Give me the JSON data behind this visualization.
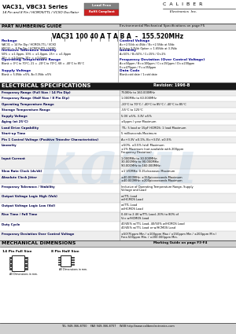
{
  "title_series": "VAC31, VBC31 Series",
  "title_sub": "14 Pin and 8 Pin / HCMOS/TTL / VCXO Oscillator",
  "env_text": "Environmental Mechanical Specifications on page F5",
  "part_guide_title": "PART NUMBERING GUIDE",
  "part_example": "VAC31 100 40 A T A B A  -  155.520MHz",
  "revision_text": "Revision: 1996-B",
  "elec_spec_title": "ELECTRICAL SPECIFICATIONS",
  "mech_title": "MECHANICAL DIMENSIONS",
  "marking_title": "Marking Guide on page F3-F4",
  "bottom_contact": "TEL 949-366-8700    FAX 949-366-8707    WEB http://www.caliberelectronics.com",
  "logo_line1": "C  A  L  I  B  E  R",
  "logo_line2": "Electronics  Inc.",
  "lead_free_line1": "Lead Free",
  "lead_free_line2": "RoHS Compliant",
  "table_rows": [
    [
      "Frequency Range (Full Size / 14 Pin Dip)",
      "750KHz to 160.000MHz"
    ],
    [
      "Frequency Range (Half Size / 8 Pin Dip)",
      "1.000MHz to 60.000MHz"
    ],
    [
      "Operating Temperature Range",
      "-20°C to 70°C / -40°C to 85°C / -40°C to 85°C"
    ],
    [
      "Storage Temperature Range",
      "-55°C to 125°C"
    ],
    [
      "Supply Voltage",
      "5.0V ±5%, 3.3V ±5%"
    ],
    [
      "Aging (at 25°C)",
      "±5ppm / year Maximum"
    ],
    [
      "Load Drive Capability",
      "TTL: 5 load or 15pF HCMOS: 1 load Maximum"
    ],
    [
      "Start-up Time",
      "5 milliseconds Maximum"
    ],
    [
      "Pin 1 Control Voltage (Positive Transfer Characteristics)",
      "A=+3.3V ±0.1%, B=+3.0V, ±0.5%"
    ],
    [
      "Linearity",
      "±50%, ±0.5% (std) Maximum\n±1% Maximum (not available with 200ppm\nFrequency Deviation)"
    ],
    [
      "Input Current",
      "1.000MHz to 30.000MHz:\n30.001MHz to 90.000MHz:\n90.001MHz to 160.000MHz:"
    ],
    [
      "Slew Rate Clock (dv/dt)",
      "±1 V/0MHz: 0.15v/nanosec Maximum"
    ],
    [
      "Absolute Clock Jitter",
      "±40.000MHz: ±150picoseconds Maximum\n±40.000MHz: ±200picoseconds Maximum"
    ],
    [
      "Frequency Tolerance / Stability",
      "Inclusive of Operating Temperature Range, Supply\nVoltage and Load"
    ],
    [
      "Output Voltage Logic High (Voh)",
      "w/TTL Load\nw/HCMOS Load"
    ],
    [
      "Output Voltage Logic Low (Vol)",
      "w/TTL Load\nw/HCMOS Load"
    ],
    [
      "Rise Time / Fall Time",
      "0.4V to 2.4V w/TTL Load, 20% to 80% of\nVcc w/HCMOS Load"
    ],
    [
      "Duty Cycle",
      "40/45% w/TTL Load, 40/50% w/HCMOS Load\n40/45% w/TTL Load or w/HCMOS Load"
    ],
    [
      "Frequency Deviation Over Control Voltage",
      "±50/75ppm Min / ±100ppm Max / ±150ppm Min / ±200ppm Min /\nFree.500ppm Min. / ±200.000ppm Min."
    ]
  ],
  "part_left_labels": [
    [
      "Package",
      "VAC31 = 14 Pin Dip / HCMOS-TTL / VCXO\nVBC31 =  8 Pin Dip / HCMOS-TTL / VCXO"
    ],
    [
      "Inclusive Tolerance Stability",
      "50% = ±1.0ppm, 10% = ±1.0ppm, 25+ = ±1.0ppm\n20+ = ±1.0ppm, 10+ = ±1.0ppm"
    ],
    [
      "Operating Temperature Range",
      "Blank = 0°C to 70°C, 21 = -20°C to 70°C, 68 = -40°C to 85°C"
    ],
    [
      "Supply Voltage",
      "Blank = 5.0Vdc ±5%, A=3.3Vdc ±5%"
    ]
  ],
  "part_right_labels": [
    [
      "Control Voltage",
      "A=+2.5Vdc at 4Vdc / B=+2.5Vdc at 5Vdc\nB Using 3.3Vdc Option = 1.65Vdc at 3.3Vdc"
    ],
    [
      "Linearity",
      "A=50% / B=50% / C=15% / D=2%"
    ],
    [
      "Frequency Deviation (Over Control Voltage)",
      "A=±50ppm / B=±100ppm / C=±150ppm / D=±200ppm\nE=±475ppm / F=±350ppm"
    ],
    [
      "Data Code",
      "Blank=std date / 1=std date"
    ]
  ],
  "bg_color": "#ffffff",
  "row_alt_color": "#eeeeee",
  "header_dark_bg": "#1a1a1a",
  "header_dark_fg": "#ffffff",
  "section_header_bg": "#c8c8c8",
  "watermark_color": "#a8c4e0"
}
